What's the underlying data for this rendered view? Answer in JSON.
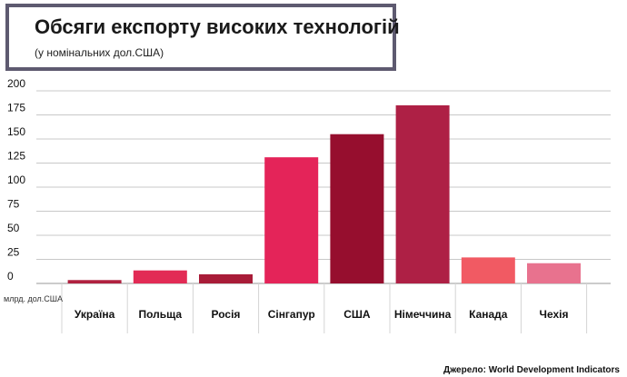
{
  "header": {
    "title": "Обсяги експорту високих технологій",
    "subtitle": "(у номінальних дол.США)"
  },
  "unit_label": "млрд. дол.США",
  "source": "Джерело: World Development Indicators",
  "chart_data": {
    "type": "bar",
    "title": "Обсяги експорту високих технологій",
    "subtitle": "(у номінальних дол.США)",
    "ylabel": "млрд. дол.США",
    "categories": [
      "Україна",
      "Польща",
      "Росія",
      "Сінгапур",
      "США",
      "Німеччина",
      "Канада",
      "Чехія"
    ],
    "values": [
      3.5,
      13.5,
      9.5,
      131,
      155,
      185,
      27,
      21
    ],
    "colors": [
      "#b0213f",
      "#e22b55",
      "#a81c38",
      "#e42459",
      "#960e2e",
      "#ae2045",
      "#f15a63",
      "#e8728e"
    ],
    "yticks": [
      0,
      25,
      50,
      75,
      100,
      125,
      150,
      175,
      200
    ],
    "ylim": [
      0,
      200
    ],
    "grid": true,
    "legend": "none"
  }
}
